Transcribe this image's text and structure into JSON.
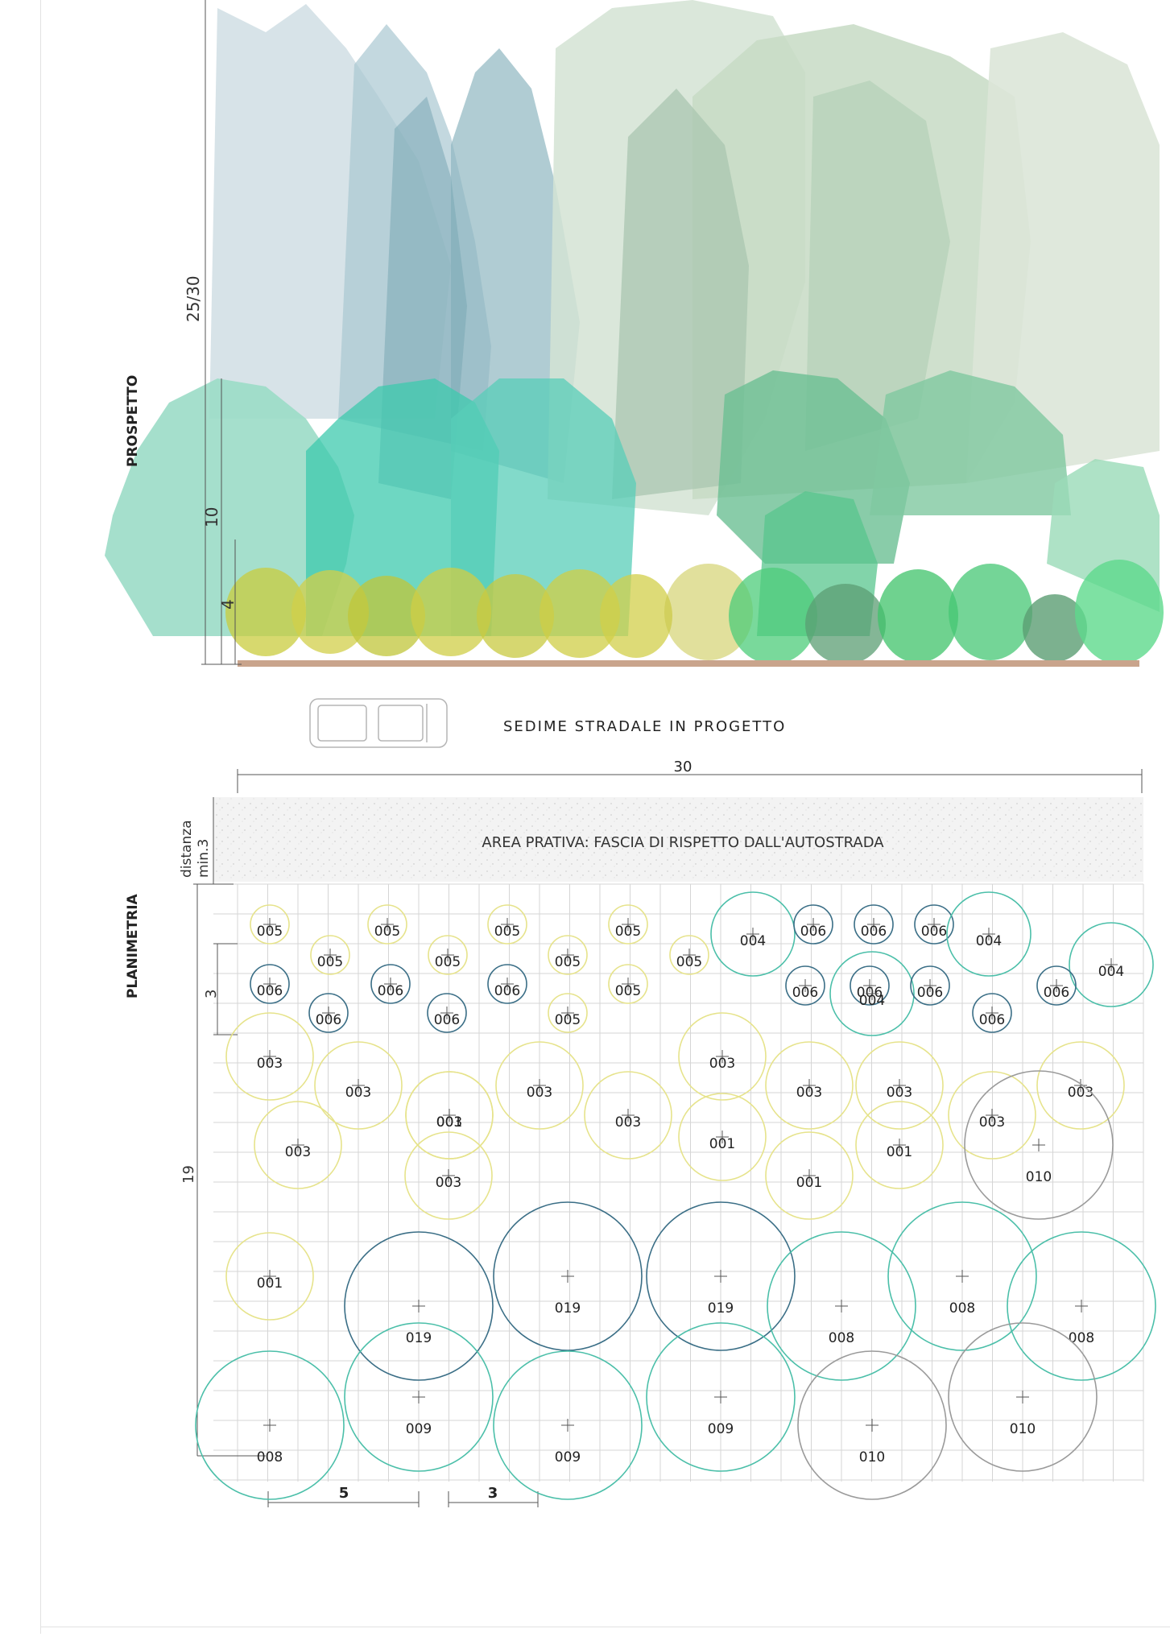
{
  "elevation": {
    "section_label": "PROSPETTO",
    "height_labels": {
      "total": "25/30",
      "medium": "10",
      "low": "4"
    }
  },
  "road": {
    "label": "SEDIME STRADALE IN PROGETTO"
  },
  "plan": {
    "section_label": "PLANIMETRIA",
    "width_label": "30",
    "setback_label": "distanza",
    "setback_value": "min.3",
    "meadow_label": "AREA PRATIVA: FASCIA DI RISPETTO DALL'AUTOSTRADA",
    "depth_label": "19",
    "row_spacing_label": "3",
    "spacing_labels": {
      "five": "5",
      "three": "3"
    },
    "planting_codes": [
      "005",
      "005",
      "005",
      "005",
      "004",
      "006",
      "006",
      "006",
      "004",
      "005",
      "005",
      "005",
      "005",
      "004",
      "006",
      "006",
      "006",
      "005",
      "006",
      "006",
      "004",
      "006",
      "006",
      "006",
      "006",
      "005",
      "006",
      "003",
      "003",
      "003",
      "003",
      "003",
      "003",
      "003",
      "003",
      "003",
      "003",
      "003",
      "001",
      "003",
      "001",
      "001",
      "001",
      "001",
      "019",
      "019",
      "019",
      "008",
      "008",
      "008",
      "008",
      "009",
      "009",
      "009",
      "010",
      "010",
      "010"
    ]
  },
  "colors": {
    "ground_line": "#c9a48c",
    "grid": "#d5d5d5",
    "teal_circle": "#4bbfa9",
    "yellow_circle": "#e6e38b",
    "blue_circle": "#3a6e86",
    "grey_circle": "#9a9a9a"
  }
}
